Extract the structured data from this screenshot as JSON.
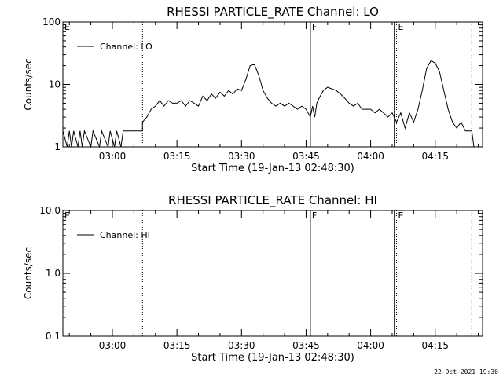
{
  "footer": {
    "timestamp": "22-Oct-2021 19:30"
  },
  "chart_data": [
    {
      "type": "line",
      "title": "RHESSI PARTICLE_RATE Channel: LO",
      "xlabel": "Start Time (19-Jan-13 02:48:30)",
      "ylabel": "Counts/sec",
      "yscale": "log",
      "ylim": [
        1,
        100
      ],
      "xlim": [
        "02:48:30",
        "04:26:00"
      ],
      "grid": false,
      "legend": {
        "position": "top-left",
        "entries": [
          "Channel: LO"
        ]
      },
      "x_ticks": [
        "03:00",
        "03:15",
        "03:30",
        "03:45",
        "04:00",
        "04:15"
      ],
      "y_ticks": [
        "1",
        "10",
        "100"
      ],
      "vertical_markers": [
        {
          "time": "03:07:00",
          "style": "dotted",
          "label": ""
        },
        {
          "time": "03:46:00",
          "style": "solid",
          "label": "F"
        },
        {
          "time": "04:05:30",
          "style": "solid",
          "label": ""
        },
        {
          "time": "04:06:00",
          "style": "dotted",
          "label": "E"
        },
        {
          "time": "04:23:30",
          "style": "dotted",
          "label": ""
        }
      ],
      "corner_labels": [
        "E"
      ],
      "series": [
        {
          "name": "Channel: LO",
          "points": [
            [
              "02:48:30",
              1.8
            ],
            [
              "02:49:30",
              0.9
            ],
            [
              "02:50:00",
              1.8
            ],
            [
              "02:50:30",
              0.9
            ],
            [
              "02:51:00",
              1.8
            ],
            [
              "02:52:00",
              0.9
            ],
            [
              "02:52:30",
              1.8
            ],
            [
              "02:53:00",
              0.9
            ],
            [
              "02:53:30",
              1.8
            ],
            [
              "02:55:00",
              0.9
            ],
            [
              "02:55:30",
              1.8
            ],
            [
              "02:57:00",
              0.9
            ],
            [
              "02:57:30",
              1.8
            ],
            [
              "02:59:00",
              0.9
            ],
            [
              "02:59:30",
              1.8
            ],
            [
              "03:00:30",
              0.9
            ],
            [
              "03:01:00",
              1.8
            ],
            [
              "03:02:00",
              0.9
            ],
            [
              "03:02:30",
              1.8
            ],
            [
              "03:07:00",
              1.8
            ],
            [
              "03:07:00",
              2.5
            ],
            [
              "03:08:00",
              3.0
            ],
            [
              "03:09:00",
              4.0
            ],
            [
              "03:10:00",
              4.5
            ],
            [
              "03:11:00",
              5.5
            ],
            [
              "03:12:00",
              4.5
            ],
            [
              "03:13:00",
              5.5
            ],
            [
              "03:14:00",
              5.0
            ],
            [
              "03:15:00",
              5.0
            ],
            [
              "03:16:00",
              5.5
            ],
            [
              "03:17:00",
              4.5
            ],
            [
              "03:18:00",
              5.5
            ],
            [
              "03:19:00",
              5.0
            ],
            [
              "03:20:00",
              4.5
            ],
            [
              "03:21:00",
              6.5
            ],
            [
              "03:22:00",
              5.5
            ],
            [
              "03:23:00",
              7.0
            ],
            [
              "03:24:00",
              6.0
            ],
            [
              "03:25:00",
              7.5
            ],
            [
              "03:26:00",
              6.5
            ],
            [
              "03:27:00",
              8.0
            ],
            [
              "03:28:00",
              7.0
            ],
            [
              "03:29:00",
              8.5
            ],
            [
              "03:30:00",
              8.0
            ],
            [
              "03:31:00",
              12.0
            ],
            [
              "03:32:00",
              20.0
            ],
            [
              "03:33:00",
              21.0
            ],
            [
              "03:34:00",
              14.0
            ],
            [
              "03:35:00",
              8.0
            ],
            [
              "03:36:00",
              6.0
            ],
            [
              "03:37:00",
              5.0
            ],
            [
              "03:38:00",
              4.5
            ],
            [
              "03:39:00",
              5.0
            ],
            [
              "03:40:00",
              4.5
            ],
            [
              "03:41:00",
              5.0
            ],
            [
              "03:42:00",
              4.5
            ],
            [
              "03:43:00",
              4.0
            ],
            [
              "03:44:00",
              4.5
            ],
            [
              "03:45:00",
              4.0
            ],
            [
              "03:46:00",
              3.0
            ],
            [
              "03:46:30",
              4.5
            ],
            [
              "03:47:00",
              3.0
            ],
            [
              "03:47:30",
              5.0
            ],
            [
              "03:48:00",
              6.0
            ],
            [
              "03:49:00",
              8.0
            ],
            [
              "03:50:00",
              9.0
            ],
            [
              "03:51:00",
              8.5
            ],
            [
              "03:52:00",
              8.0
            ],
            [
              "03:53:00",
              7.0
            ],
            [
              "03:54:00",
              6.0
            ],
            [
              "03:55:00",
              5.0
            ],
            [
              "03:56:00",
              4.5
            ],
            [
              "03:57:00",
              5.0
            ],
            [
              "03:58:00",
              4.0
            ],
            [
              "03:59:00",
              4.0
            ],
            [
              "04:00:00",
              4.0
            ],
            [
              "04:01:00",
              3.5
            ],
            [
              "04:02:00",
              4.0
            ],
            [
              "04:03:00",
              3.5
            ],
            [
              "04:04:00",
              3.0
            ],
            [
              "04:05:00",
              3.5
            ],
            [
              "04:06:00",
              2.5
            ],
            [
              "04:07:00",
              3.5
            ],
            [
              "04:08:00",
              2.0
            ],
            [
              "04:09:00",
              3.5
            ],
            [
              "04:10:00",
              2.5
            ],
            [
              "04:11:00",
              4.0
            ],
            [
              "04:12:00",
              8.0
            ],
            [
              "04:13:00",
              18.0
            ],
            [
              "04:14:00",
              24.0
            ],
            [
              "04:15:00",
              22.0
            ],
            [
              "04:16:00",
              16.0
            ],
            [
              "04:17:00",
              8.0
            ],
            [
              "04:18:00",
              4.0
            ],
            [
              "04:19:00",
              2.5
            ],
            [
              "04:20:00",
              2.0
            ],
            [
              "04:21:00",
              2.5
            ],
            [
              "04:22:00",
              1.8
            ],
            [
              "04:23:30",
              1.8
            ],
            [
              "04:24:00",
              0.9
            ]
          ]
        }
      ]
    },
    {
      "type": "line",
      "title": "RHESSI PARTICLE_RATE Channel: HI",
      "xlabel": "Start Time (19-Jan-13 02:48:30)",
      "ylabel": "Counts/sec",
      "yscale": "log",
      "ylim": [
        0.1,
        10
      ],
      "xlim": [
        "02:48:30",
        "04:26:00"
      ],
      "grid": false,
      "legend": {
        "position": "top-left",
        "entries": [
          "Channel: HI"
        ]
      },
      "x_ticks": [
        "03:00",
        "03:15",
        "03:30",
        "03:45",
        "04:00",
        "04:15"
      ],
      "y_ticks": [
        "0.1",
        "1.0",
        "10.0"
      ],
      "vertical_markers": [
        {
          "time": "03:07:00",
          "style": "dotted",
          "label": ""
        },
        {
          "time": "03:46:00",
          "style": "solid",
          "label": "F"
        },
        {
          "time": "04:05:30",
          "style": "solid",
          "label": ""
        },
        {
          "time": "04:06:00",
          "style": "dotted",
          "label": "E"
        },
        {
          "time": "04:23:30",
          "style": "dotted",
          "label": ""
        }
      ],
      "corner_labels": [
        "E"
      ],
      "series": [
        {
          "name": "Channel: HI",
          "points": []
        }
      ]
    }
  ]
}
